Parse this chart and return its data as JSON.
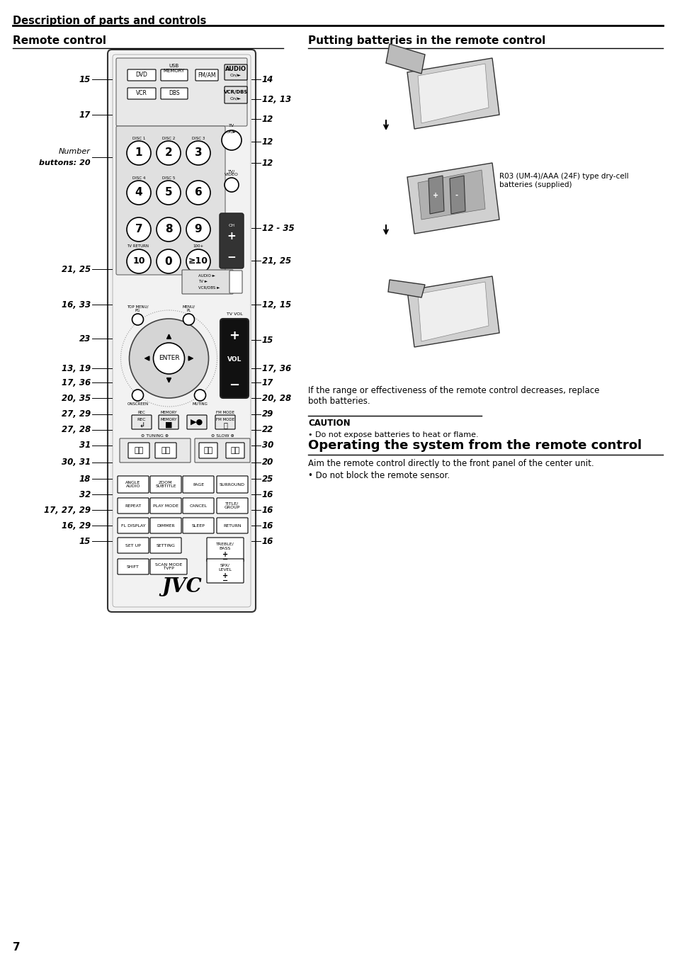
{
  "bg_color": "#ffffff",
  "page_number": "7",
  "section_title": "Description of parts and controls",
  "left_section_title": "Remote control",
  "right_section_title": "Putting batteries in the remote control",
  "bottom_section_title": "Operating the system from the remote control",
  "operating_text": "Aim the remote control directly to the front panel of the center unit.",
  "operating_bullet": "• Do not block the remote sensor.",
  "battery_text": "If the range or effectiveness of the remote control decreases, replace\nboth batteries.",
  "caution_title": "CAUTION",
  "caution_bullet": "• Do not expose batteries to heat or flame.",
  "battery_label": "R03 (UM-4)/AAA (24F) type dry-cell\nbatteries (supplied)"
}
